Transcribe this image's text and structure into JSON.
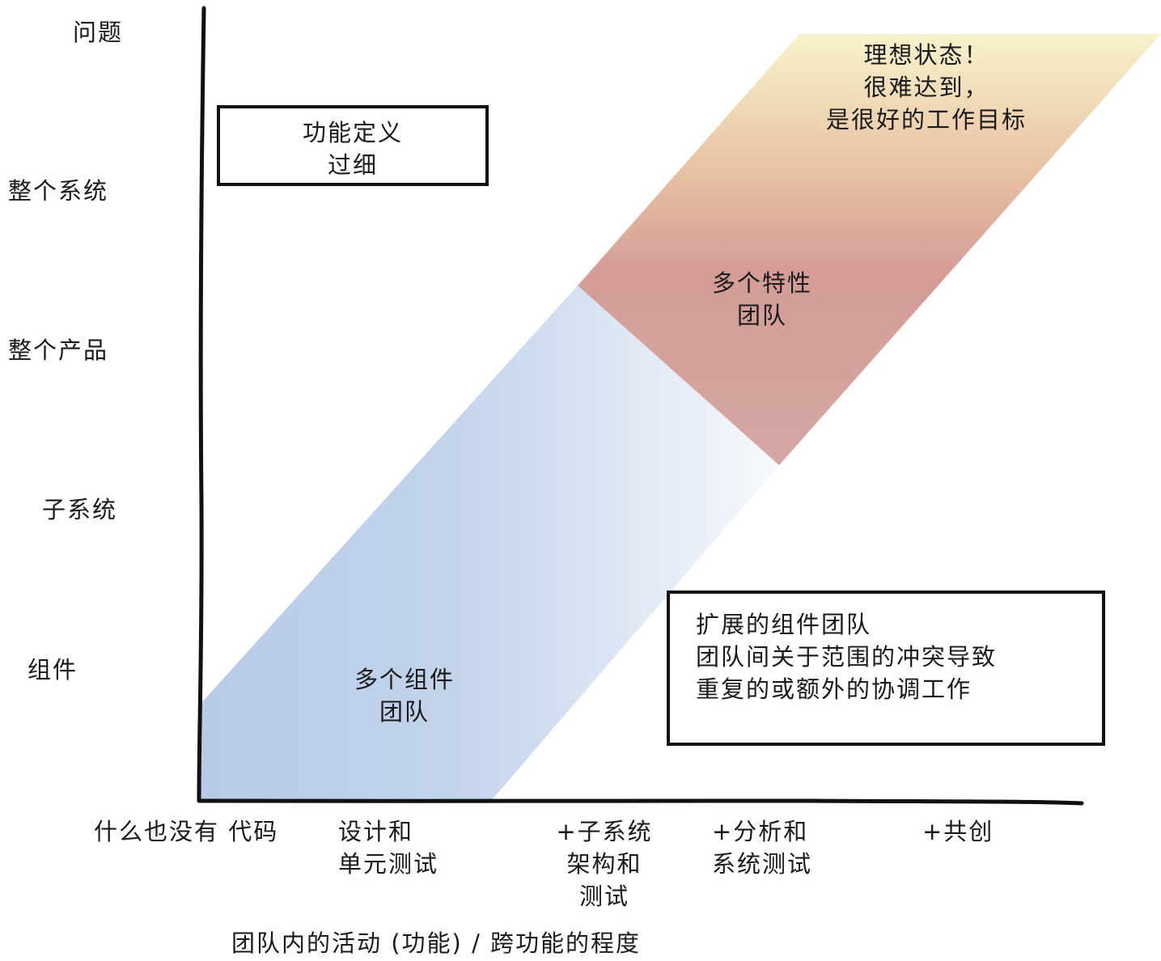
{
  "y_axis": {
    "levels": [
      "问题",
      "整个系统",
      "整个产品",
      "子系统",
      "组件"
    ]
  },
  "x_axis": {
    "stages": [
      "什么也没有 代码",
      "设计和\n单元测试",
      "+子系统\n架构和\n测试",
      "+分析和\n系统测试",
      "+共创"
    ],
    "title": "团队内的活动 (功能) / 跨功能的程度"
  },
  "band_labels": {
    "component_teams": "多个组件\n团队",
    "feature_teams": "多个特性\n团队",
    "ideal": "理想状态！\n很难达到，\n是很好的工作目标"
  },
  "callouts": {
    "too_narrow": "功能定义\n过细",
    "extended_component": "扩展的组件团队\n团队间关于范围的冲突导致\n重复的或额外的协调工作"
  },
  "colors": {
    "blue_band": "#b7cbe6",
    "rose_band": "#d4a39f",
    "yellow_band": "#f7f0c8",
    "line": "#111111"
  }
}
